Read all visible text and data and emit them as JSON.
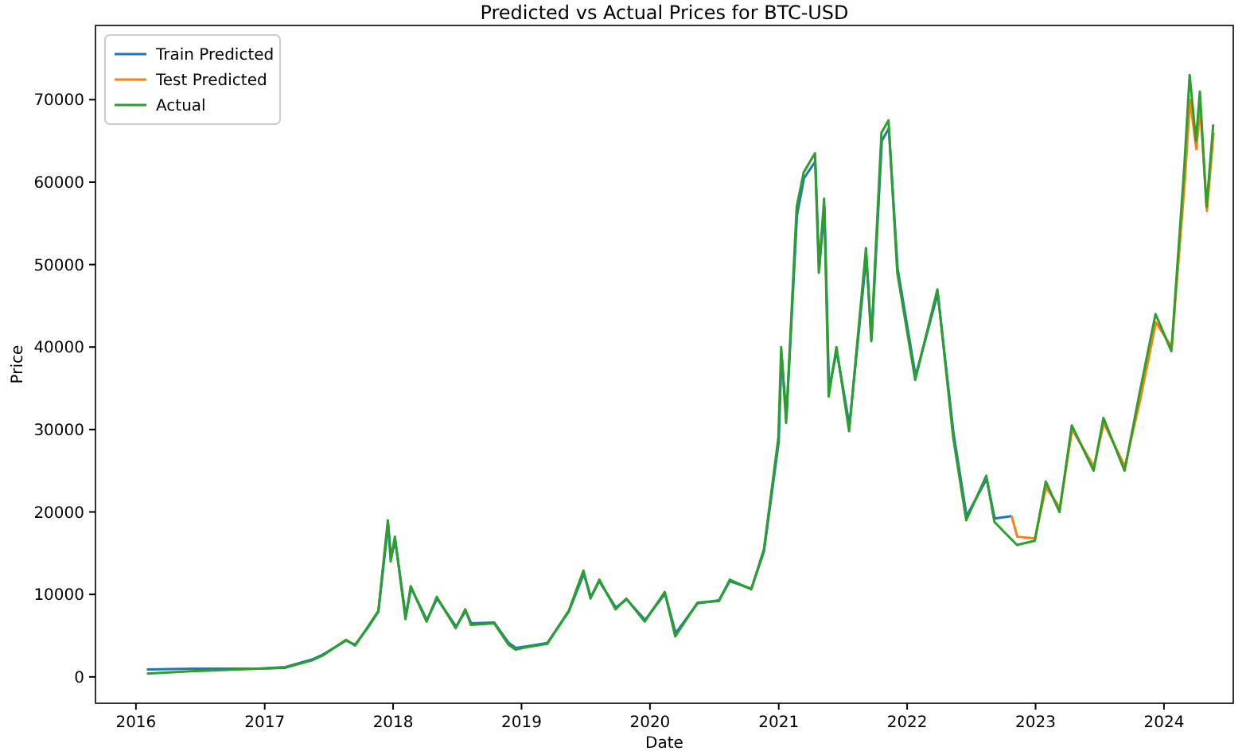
{
  "chart_data": {
    "type": "line",
    "title": "Predicted vs Actual Prices for BTC-USD",
    "xlabel": "Date",
    "ylabel": "Price",
    "xlim": [
      "2015-09-08",
      "2024-07-16"
    ],
    "xticks": [
      "2016",
      "2017",
      "2018",
      "2019",
      "2020",
      "2021",
      "2022",
      "2023",
      "2024"
    ],
    "ylim": [
      -3200,
      79000
    ],
    "yticks": [
      0,
      10000,
      20000,
      30000,
      40000,
      50000,
      60000,
      70000
    ],
    "grid": false,
    "legend": "top left",
    "line_style": "solid",
    "marker": "none",
    "series": [
      {
        "name": "Train Predicted",
        "color": "#1f77b4",
        "x": [
          "2016-02-01",
          "2016-06-15",
          "2016-12-15",
          "2017-03-01",
          "2017-05-15",
          "2017-06-15",
          "2017-08-20",
          "2017-09-15",
          "2017-10-20",
          "2017-11-20",
          "2017-12-18",
          "2017-12-26",
          "2018-01-07",
          "2018-02-06",
          "2018-02-21",
          "2018-04-07",
          "2018-05-06",
          "2018-06-29",
          "2018-07-26",
          "2018-08-11",
          "2018-10-15",
          "2018-11-26",
          "2018-12-16",
          "2019-01-15",
          "2019-03-15",
          "2019-05-15",
          "2019-06-27",
          "2019-07-17",
          "2019-08-10",
          "2019-09-26",
          "2019-10-27",
          "2019-12-18",
          "2020-02-13",
          "2020-03-14",
          "2020-05-15",
          "2020-07-15",
          "2020-08-15",
          "2020-10-15",
          "2020-11-20",
          "2021-01-01",
          "2021-01-09",
          "2021-01-23",
          "2021-02-22",
          "2021-03-14",
          "2021-04-15",
          "2021-04-26",
          "2021-05-11",
          "2021-05-24",
          "2021-06-15",
          "2021-07-21",
          "2021-09-07",
          "2021-09-22",
          "2021-10-21",
          "2021-11-10",
          "2021-12-05",
          "2022-01-25",
          "2022-03-29",
          "2022-05-13",
          "2022-06-19",
          "2022-08-15",
          "2022-09-07",
          "2022-10-25"
        ],
        "values": [
          900,
          1000,
          1000,
          1200,
          2100,
          2700,
          4400,
          3900,
          5900,
          7900,
          18500,
          14500,
          16500,
          7300,
          10800,
          6900,
          9500,
          6100,
          8000,
          6500,
          6600,
          4100,
          3500,
          3700,
          4100,
          7900,
          12500,
          9700,
          11600,
          8400,
          9400,
          6900,
          10100,
          5300,
          8900,
          9300,
          11600,
          10700,
          15200,
          28500,
          39000,
          31500,
          56000,
          60500,
          62500,
          49500,
          57000,
          35000,
          39500,
          30500,
          51000,
          41000,
          65000,
          66500,
          49500,
          36500,
          46500,
          29500,
          19500,
          24000,
          19200,
          19500
        ]
      },
      {
        "name": "Test Predicted",
        "color": "#ff7f0e",
        "x": [
          "2022-10-25",
          "2022-11-10",
          "2022-12-30",
          "2023-01-31",
          "2023-03-11",
          "2023-04-15",
          "2023-06-16",
          "2023-07-14",
          "2023-09-12",
          "2023-10-25",
          "2023-12-09",
          "2024-01-23",
          "2024-02-29",
          "2024-03-15",
          "2024-04-02",
          "2024-04-13",
          "2024-05-02",
          "2024-05-21"
        ],
        "values": [
          19500,
          17000,
          16800,
          23000,
          20500,
          30000,
          25500,
          30800,
          25500,
          33500,
          43000,
          40000,
          60000,
          70000,
          64000,
          69000,
          56500,
          66000
        ]
      },
      {
        "name": "Actual",
        "color": "#2ca02c",
        "x": [
          "2016-02-01",
          "2016-06-15",
          "2016-12-15",
          "2017-03-01",
          "2017-05-15",
          "2017-06-15",
          "2017-08-20",
          "2017-09-15",
          "2017-10-20",
          "2017-11-20",
          "2017-12-17",
          "2017-12-25",
          "2018-01-06",
          "2018-02-05",
          "2018-02-20",
          "2018-04-06",
          "2018-05-05",
          "2018-06-28",
          "2018-07-25",
          "2018-08-10",
          "2018-10-15",
          "2018-11-25",
          "2018-12-15",
          "2019-01-15",
          "2019-03-15",
          "2019-05-15",
          "2019-06-26",
          "2019-07-16",
          "2019-08-10",
          "2019-09-25",
          "2019-10-26",
          "2019-12-17",
          "2020-02-12",
          "2020-03-13",
          "2020-05-15",
          "2020-07-15",
          "2020-08-15",
          "2020-10-15",
          "2020-11-20",
          "2020-12-31",
          "2021-01-08",
          "2021-01-22",
          "2021-02-21",
          "2021-03-13",
          "2021-04-14",
          "2021-04-25",
          "2021-05-10",
          "2021-05-23",
          "2021-06-14",
          "2021-07-20",
          "2021-09-06",
          "2021-09-21",
          "2021-10-20",
          "2021-11-09",
          "2021-12-04",
          "2022-01-24",
          "2022-03-28",
          "2022-05-12",
          "2022-06-18",
          "2022-08-14",
          "2022-09-06",
          "2022-11-09",
          "2022-12-30",
          "2023-01-30",
          "2023-03-10",
          "2023-04-14",
          "2023-06-15",
          "2023-07-13",
          "2023-09-11",
          "2023-10-24",
          "2023-12-08",
          "2024-01-22",
          "2024-02-28",
          "2024-03-14",
          "2024-04-01",
          "2024-04-12",
          "2024-05-01",
          "2024-05-20"
        ],
        "values": [
          400,
          700,
          1000,
          1100,
          2000,
          2600,
          4500,
          3800,
          6000,
          8000,
          19000,
          14000,
          17000,
          7000,
          11000,
          6700,
          9700,
          5900,
          8200,
          6300,
          6500,
          3900,
          3300,
          3600,
          4000,
          8000,
          12900,
          9500,
          11800,
          8200,
          9500,
          6700,
          10300,
          4900,
          9000,
          9200,
          11800,
          10600,
          15500,
          29000,
          40000,
          30800,
          57000,
          61200,
          63500,
          49000,
          58000,
          34000,
          40000,
          29800,
          52000,
          40700,
          66000,
          67500,
          49000,
          36000,
          47000,
          29000,
          19000,
          24400,
          18800,
          16000,
          16500,
          23700,
          20000,
          30500,
          25000,
          31400,
          25000,
          34500,
          44000,
          39500,
          62000,
          73000,
          65000,
          71000,
          57000,
          67000
        ]
      }
    ]
  }
}
